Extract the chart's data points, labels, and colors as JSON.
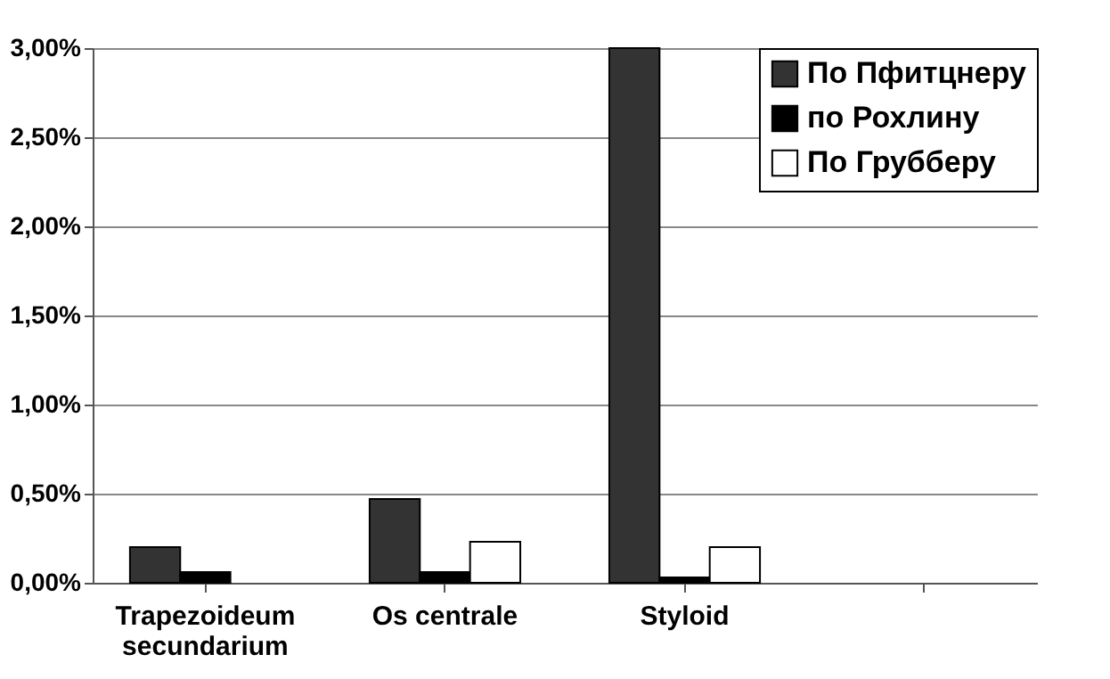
{
  "chart_data": {
    "type": "bar",
    "categories": [
      "Trapezoideum secundarium",
      "Os centrale",
      "Styloid",
      null
    ],
    "series": [
      {
        "name": "По Пфитцнеру",
        "color": "#333333",
        "values": [
          0.2,
          0.47,
          3.0,
          null
        ]
      },
      {
        "name": "по Рохлину",
        "color": "#000000",
        "values": [
          0.06,
          0.06,
          0.03,
          null
        ]
      },
      {
        "name": "По Грубберу",
        "color": "#ffffff",
        "values": [
          null,
          0.23,
          0.2,
          null
        ]
      }
    ],
    "ylim": [
      0,
      3
    ],
    "yticks": [
      {
        "value": 0,
        "label": "0,00%"
      },
      {
        "value": 0.5,
        "label": "0,50%"
      },
      {
        "value": 1,
        "label": "1,00%"
      },
      {
        "value": 1.5,
        "label": "1,50%"
      },
      {
        "value": 2,
        "label": "2,00%"
      },
      {
        "value": 2.5,
        "label": "2,50%"
      },
      {
        "value": 3,
        "label": "3,00%"
      }
    ],
    "grid": "y",
    "legend": "top right"
  }
}
